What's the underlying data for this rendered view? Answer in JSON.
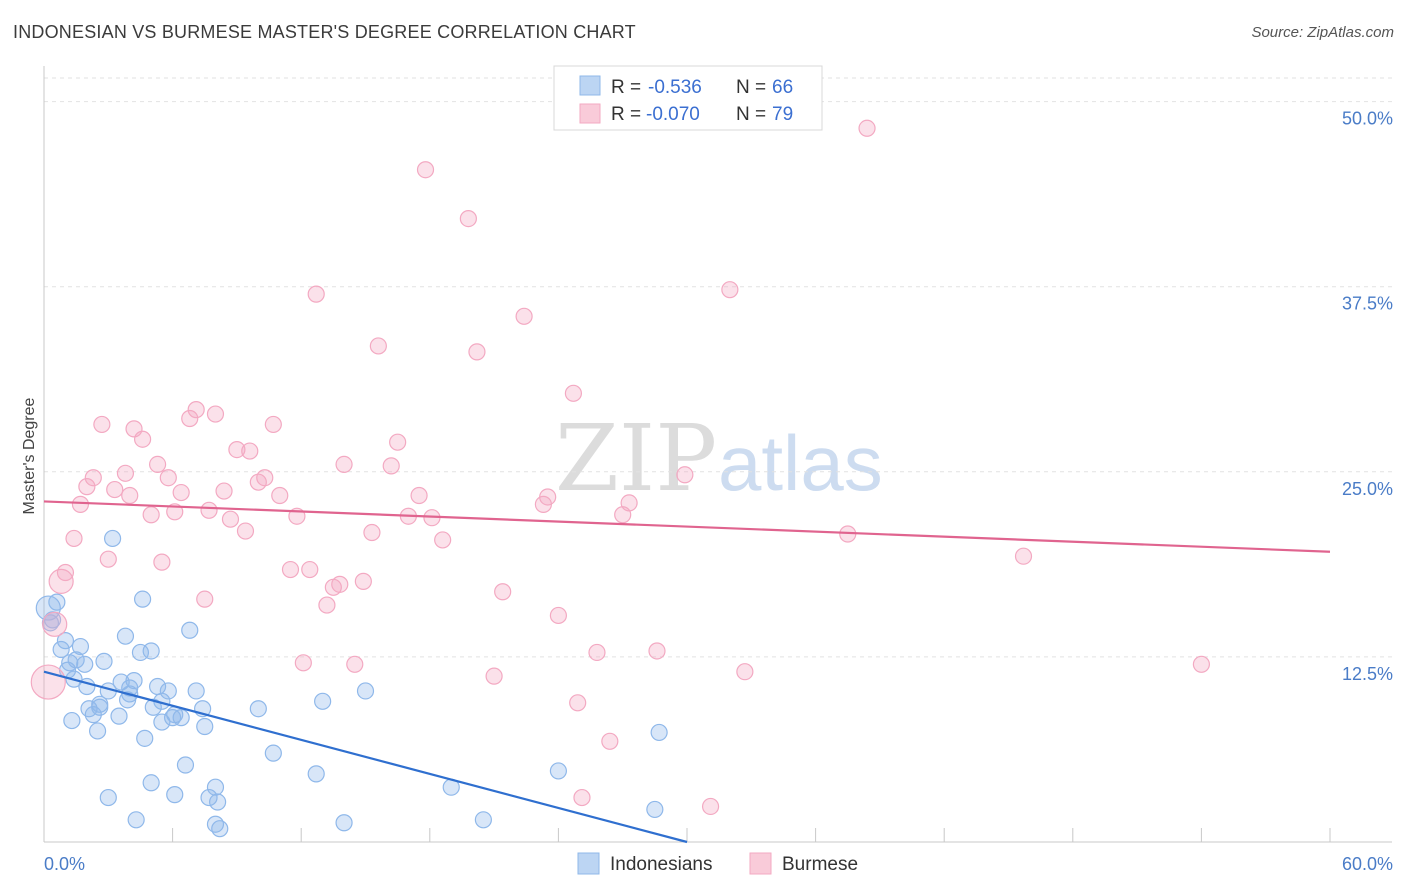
{
  "title": "INDONESIAN VS BURMESE MASTER'S DEGREE CORRELATION CHART",
  "source": "Source: ZipAtlas.com",
  "watermark": {
    "zip": "ZIP",
    "atlas": "atlas"
  },
  "chart_data": {
    "type": "scatter",
    "title": "INDONESIAN VS BURMESE MASTER'S DEGREE CORRELATION CHART",
    "xlabel": "",
    "ylabel": "Master's Degree",
    "xlim": [
      0,
      60
    ],
    "ylim": [
      0,
      52
    ],
    "x_tick_labels": [
      {
        "value": 0,
        "label": "0.0%"
      },
      {
        "value": 60,
        "label": "60.0%"
      }
    ],
    "y_tick_labels": [
      {
        "value": 12.5,
        "label": "12.5%"
      },
      {
        "value": 25,
        "label": "25.0%"
      },
      {
        "value": 37.5,
        "label": "37.5%"
      },
      {
        "value": 50,
        "label": "50.0%"
      }
    ],
    "grid": true,
    "legend_position": "top-center",
    "series": [
      {
        "name": "Indonesians",
        "color": "#8fb8ea",
        "line_color": "#2f6fcf",
        "R": "-0.536",
        "N": "66",
        "trend": [
          [
            0,
            11.5
          ],
          [
            30,
            0
          ]
        ],
        "points": [
          [
            0.2,
            15.8
          ],
          [
            0.4,
            15.0
          ],
          [
            0.6,
            16.2
          ],
          [
            0.8,
            13.0
          ],
          [
            1.0,
            13.6
          ],
          [
            1.2,
            12.1
          ],
          [
            1.4,
            11.0
          ],
          [
            1.5,
            12.3
          ],
          [
            1.7,
            13.2
          ],
          [
            1.9,
            12.0
          ],
          [
            2.1,
            9.0
          ],
          [
            2.3,
            8.6
          ],
          [
            2.5,
            7.5
          ],
          [
            2.6,
            9.1
          ],
          [
            2.8,
            12.2
          ],
          [
            3.0,
            10.2
          ],
          [
            3.2,
            20.5
          ],
          [
            3.5,
            8.5
          ],
          [
            3.8,
            13.9
          ],
          [
            3.9,
            9.6
          ],
          [
            4.0,
            10.4
          ],
          [
            4.2,
            10.9
          ],
          [
            4.5,
            12.8
          ],
          [
            4.6,
            16.4
          ],
          [
            4.7,
            7.0
          ],
          [
            5.0,
            12.9
          ],
          [
            5.1,
            9.1
          ],
          [
            5.3,
            10.5
          ],
          [
            5.5,
            9.5
          ],
          [
            5.8,
            10.2
          ],
          [
            6.1,
            8.6
          ],
          [
            6.4,
            8.4
          ],
          [
            6.6,
            5.2
          ],
          [
            6.8,
            14.3
          ],
          [
            7.1,
            10.2
          ],
          [
            7.4,
            9.0
          ],
          [
            7.7,
            3.0
          ],
          [
            8.0,
            3.7
          ],
          [
            8.2,
            0.9
          ],
          [
            10.0,
            9.0
          ],
          [
            10.7,
            6.0
          ],
          [
            12.7,
            4.6
          ],
          [
            13.0,
            9.5
          ],
          [
            14.0,
            1.3
          ],
          [
            15.0,
            10.2
          ],
          [
            19.0,
            3.7
          ],
          [
            20.5,
            1.5
          ],
          [
            24.0,
            4.8
          ],
          [
            28.5,
            2.2
          ],
          [
            28.7,
            7.4
          ],
          [
            3.0,
            3.0
          ],
          [
            4.3,
            1.5
          ],
          [
            6.1,
            3.2
          ],
          [
            8.1,
            2.7
          ],
          [
            7.5,
            7.8
          ],
          [
            5.0,
            4.0
          ],
          [
            2.6,
            9.3
          ],
          [
            4.0,
            10.0
          ],
          [
            1.3,
            8.2
          ],
          [
            6.0,
            8.4
          ],
          [
            3.6,
            10.8
          ],
          [
            2.0,
            10.5
          ],
          [
            5.5,
            8.1
          ],
          [
            8.0,
            1.2
          ],
          [
            1.1,
            11.6
          ],
          [
            0.3,
            14.8
          ]
        ]
      },
      {
        "name": "Burmese",
        "color": "#f3a9c2",
        "line_color": "#e0648f",
        "R": "-0.070",
        "N": "79",
        "trend": [
          [
            0,
            23.0
          ],
          [
            60,
            19.6
          ]
        ],
        "points": [
          [
            0.2,
            10.8
          ],
          [
            0.5,
            14.7
          ],
          [
            0.8,
            17.6
          ],
          [
            1.0,
            18.2
          ],
          [
            1.4,
            20.5
          ],
          [
            1.7,
            22.8
          ],
          [
            2.0,
            24.0
          ],
          [
            2.3,
            24.6
          ],
          [
            2.7,
            28.2
          ],
          [
            3.0,
            19.1
          ],
          [
            3.3,
            23.8
          ],
          [
            3.8,
            24.9
          ],
          [
            4.0,
            23.4
          ],
          [
            4.2,
            27.9
          ],
          [
            4.6,
            27.2
          ],
          [
            5.0,
            22.1
          ],
          [
            5.3,
            25.5
          ],
          [
            5.5,
            18.9
          ],
          [
            5.8,
            24.6
          ],
          [
            6.1,
            22.3
          ],
          [
            6.4,
            23.6
          ],
          [
            6.8,
            28.6
          ],
          [
            7.1,
            29.2
          ],
          [
            7.5,
            16.4
          ],
          [
            7.7,
            22.4
          ],
          [
            8.0,
            28.9
          ],
          [
            8.4,
            23.7
          ],
          [
            8.7,
            21.8
          ],
          [
            9.0,
            26.5
          ],
          [
            9.4,
            21.0
          ],
          [
            9.6,
            26.4
          ],
          [
            10.0,
            24.3
          ],
          [
            10.3,
            24.6
          ],
          [
            10.7,
            28.2
          ],
          [
            11.0,
            23.4
          ],
          [
            11.5,
            18.4
          ],
          [
            11.8,
            22.0
          ],
          [
            12.1,
            12.1
          ],
          [
            12.4,
            18.4
          ],
          [
            12.7,
            37.0
          ],
          [
            13.2,
            16.0
          ],
          [
            13.5,
            17.2
          ],
          [
            13.8,
            17.4
          ],
          [
            14.0,
            25.5
          ],
          [
            14.5,
            12.0
          ],
          [
            14.9,
            17.6
          ],
          [
            15.3,
            20.9
          ],
          [
            15.6,
            33.5
          ],
          [
            16.2,
            25.4
          ],
          [
            16.5,
            27.0
          ],
          [
            17.0,
            22.0
          ],
          [
            17.5,
            23.4
          ],
          [
            17.8,
            45.4
          ],
          [
            18.1,
            21.9
          ],
          [
            18.6,
            20.4
          ],
          [
            19.8,
            42.1
          ],
          [
            20.2,
            33.1
          ],
          [
            21.0,
            11.2
          ],
          [
            21.4,
            16.9
          ],
          [
            22.4,
            35.5
          ],
          [
            23.3,
            22.8
          ],
          [
            23.5,
            23.3
          ],
          [
            24.0,
            15.3
          ],
          [
            24.7,
            30.3
          ],
          [
            24.9,
            9.4
          ],
          [
            25.1,
            3.0
          ],
          [
            25.8,
            12.8
          ],
          [
            26.4,
            6.8
          ],
          [
            27.0,
            22.1
          ],
          [
            27.3,
            22.9
          ],
          [
            29.9,
            24.8
          ],
          [
            31.1,
            2.4
          ],
          [
            32.0,
            37.3
          ],
          [
            32.7,
            11.5
          ],
          [
            37.5,
            20.8
          ],
          [
            38.4,
            48.2
          ],
          [
            45.7,
            19.3
          ],
          [
            54.0,
            12.0
          ],
          [
            28.6,
            12.9
          ]
        ]
      }
    ]
  }
}
